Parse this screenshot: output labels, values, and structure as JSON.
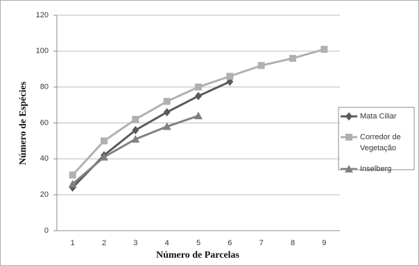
{
  "chart_data": {
    "type": "line",
    "xlabel": "Número de Parcelas",
    "ylabel": "Número de Espécies",
    "categories": [
      "1",
      "2",
      "3",
      "4",
      "5",
      "6",
      "7",
      "8",
      "9"
    ],
    "series": [
      {
        "name": "Mata Ciliar",
        "color": "#5a5a5a",
        "marker": "diamond",
        "values": [
          24,
          42,
          56,
          66,
          75,
          83,
          null,
          null,
          null
        ]
      },
      {
        "name": "Corredor de Vegetação",
        "color": "#b0b0b0",
        "marker": "square",
        "values": [
          31,
          50,
          62,
          72,
          80,
          86,
          92,
          96,
          101
        ]
      },
      {
        "name": "Inselberg",
        "color": "#808080",
        "marker": "triangle",
        "values": [
          26,
          41,
          51,
          58,
          64,
          null,
          null,
          null,
          null
        ]
      }
    ],
    "ylim": [
      0,
      120
    ],
    "yticks": [
      0,
      20,
      40,
      60,
      80,
      100,
      120
    ],
    "grid": true,
    "legend": "right"
  }
}
